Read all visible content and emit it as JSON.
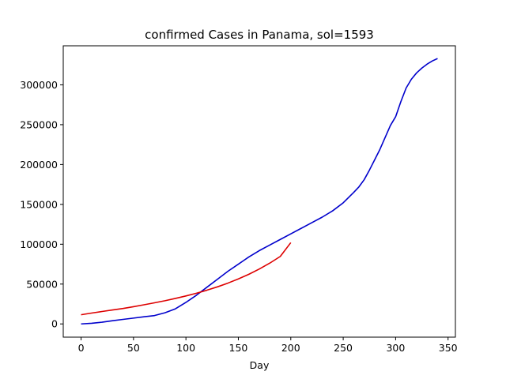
{
  "chart_data": {
    "type": "line",
    "title": "confirmed Cases in Panama, sol=1593",
    "xlabel": "Day",
    "ylabel": "",
    "xlim": [
      -17,
      357
    ],
    "ylim": [
      -16600,
      349000
    ],
    "xticks": [
      0,
      50,
      100,
      150,
      200,
      250,
      300,
      350
    ],
    "yticks": [
      0,
      50000,
      100000,
      150000,
      200000,
      250000,
      300000
    ],
    "grid": false,
    "colors": {
      "data": "#0000cc",
      "fit": "#dd0000"
    },
    "series": [
      {
        "x": [
          0,
          10,
          20,
          30,
          40,
          50,
          60,
          70,
          80,
          90,
          100,
          110,
          120,
          130,
          140,
          150,
          155,
          160,
          165,
          170,
          180,
          190,
          200,
          210,
          220,
          230,
          240,
          250,
          260,
          265,
          270,
          275,
          280,
          285,
          290,
          295,
          300,
          305,
          310,
          315,
          320,
          325,
          330,
          335,
          340
        ],
        "y": [
          0,
          800,
          2200,
          4000,
          5700,
          7300,
          9000,
          10500,
          14000,
          19000,
          27000,
          36000,
          46000,
          56000,
          66000,
          75000,
          79500,
          84000,
          88000,
          92000,
          99000,
          106000,
          113000,
          120000,
          127000,
          134000,
          142000,
          152000,
          165000,
          172000,
          181000,
          193000,
          206000,
          219000,
          234000,
          249000,
          260000,
          279000,
          296000,
          307000,
          315000,
          321000,
          326000,
          330000,
          333000
        ]
      },
      {
        "x": [
          0,
          10,
          20,
          30,
          40,
          50,
          60,
          70,
          80,
          90,
          100,
          110,
          120,
          130,
          140,
          150,
          160,
          170,
          180,
          190,
          200
        ],
        "y": [
          11500,
          13600,
          15600,
          17500,
          19400,
          21600,
          24000,
          26500,
          29100,
          32000,
          35100,
          38500,
          42300,
          46500,
          51200,
          56500,
          62300,
          68900,
          76300,
          84700,
          102000
        ]
      }
    ]
  }
}
